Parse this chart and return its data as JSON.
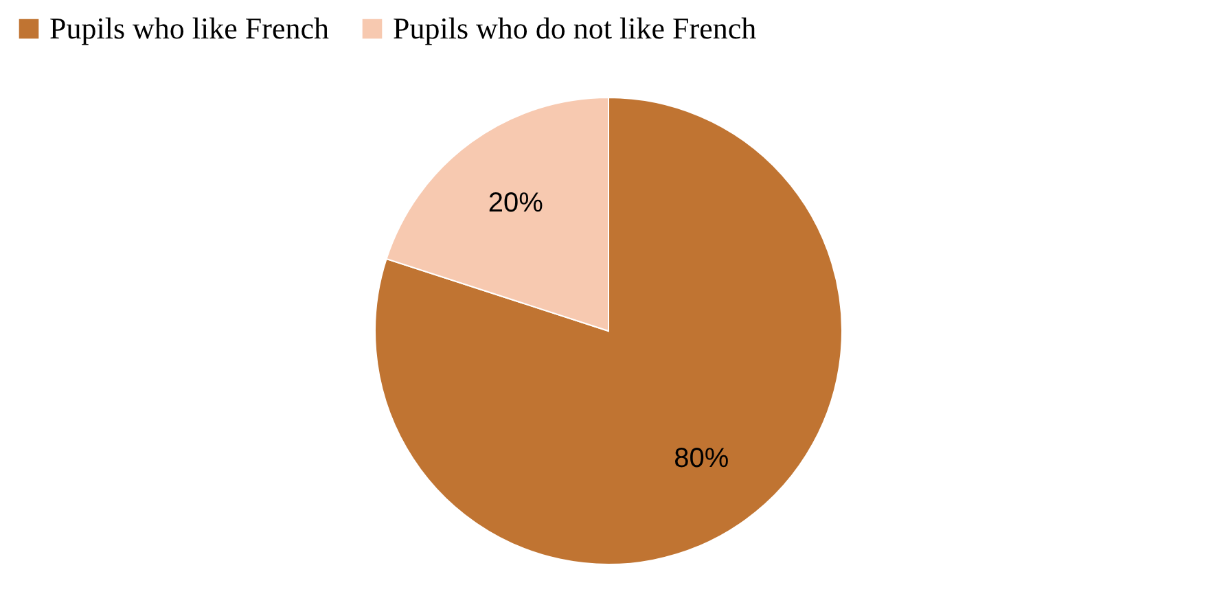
{
  "chart_data": {
    "type": "pie",
    "categories": [
      "Pupils who like French",
      "Pupils who do not like French"
    ],
    "values": [
      80,
      20
    ],
    "colors": [
      "#c07432",
      "#f7c9b0"
    ],
    "value_labels": [
      "80%",
      "20%"
    ],
    "legend": "top"
  }
}
